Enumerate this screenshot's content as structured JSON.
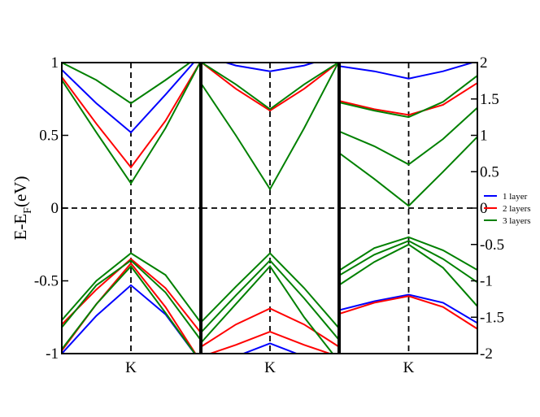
{
  "chart_data": [
    {
      "type": "line",
      "panel": "left",
      "ylabel": "E-E",
      "ylabel_subscript": "F",
      "ylabel_unit": "(eV)",
      "ylim": [
        -1,
        1
      ],
      "yticks": [
        "-1",
        "-0.5",
        "0",
        "0.5",
        "1"
      ],
      "xlim": [
        -1,
        1
      ],
      "xtick_label": "K",
      "series": [
        {
          "color": "#0000ff",
          "lines": [
            {
              "x": [
                -1,
                -0.5,
                0,
                0.5,
                1
              ],
              "y": [
                0.95,
                0.72,
                0.52,
                0.78,
                1.05
              ]
            },
            {
              "x": [
                -1,
                -0.5,
                0,
                0.5,
                1
              ],
              "y": [
                -1.0,
                -0.74,
                -0.53,
                -0.73,
                -1.05
              ]
            }
          ]
        },
        {
          "color": "#ff0000",
          "lines": [
            {
              "x": [
                -1,
                -0.5,
                0,
                0.5,
                1
              ],
              "y": [
                0.9,
                0.58,
                0.28,
                0.6,
                1.0
              ]
            },
            {
              "x": [
                -1,
                -0.5,
                0,
                0.5,
                1
              ],
              "y": [
                -0.8,
                -0.56,
                -0.35,
                -0.55,
                -0.85
              ]
            },
            {
              "x": [
                -1,
                -0.5,
                0,
                0.5,
                1
              ],
              "y": [
                -0.98,
                -0.66,
                -0.38,
                -0.68,
                -1.05
              ]
            }
          ]
        },
        {
          "color": "#008000",
          "lines": [
            {
              "x": [
                -1,
                -0.5,
                0,
                0.5,
                1
              ],
              "y": [
                1.0,
                0.88,
                0.72,
                0.88,
                1.05
              ]
            },
            {
              "x": [
                -1,
                -0.5,
                0,
                0.5,
                1
              ],
              "y": [
                0.88,
                0.52,
                0.17,
                0.55,
                1.0
              ]
            },
            {
              "x": [
                -1,
                -0.5,
                0,
                0.5,
                1
              ],
              "y": [
                -0.77,
                -0.5,
                -0.31,
                -0.46,
                -0.78
              ]
            },
            {
              "x": [
                -1,
                -0.5,
                0,
                0.5,
                1
              ],
              "y": [
                -0.82,
                -0.53,
                -0.36,
                -0.58,
                -0.9
              ]
            },
            {
              "x": [
                -1,
                -0.5,
                0,
                0.5,
                1
              ],
              "y": [
                -0.97,
                -0.66,
                -0.4,
                -0.72,
                -1.05
              ]
            }
          ]
        }
      ]
    },
    {
      "type": "line",
      "panel": "middle",
      "ylim": [
        -1,
        1
      ],
      "xlim": [
        -1,
        1
      ],
      "xtick_label": "K",
      "series": [
        {
          "color": "#0000ff",
          "lines": [
            {
              "x": [
                -1,
                -0.5,
                0,
                0.5,
                1
              ],
              "y": [
                1.05,
                0.98,
                0.94,
                0.98,
                1.05
              ]
            },
            {
              "x": [
                -1,
                -0.5,
                0,
                0.5,
                1
              ],
              "y": [
                -1.1,
                -1.02,
                -0.93,
                -1.02,
                -1.1
              ]
            }
          ]
        },
        {
          "color": "#ff0000",
          "lines": [
            {
              "x": [
                -1,
                -0.5,
                0,
                0.5,
                1
              ],
              "y": [
                1.0,
                0.82,
                0.67,
                0.82,
                1.0
              ]
            },
            {
              "x": [
                -1,
                -0.5,
                0,
                0.5,
                1
              ],
              "y": [
                -0.95,
                -0.8,
                -0.69,
                -0.8,
                -0.95
              ]
            },
            {
              "x": [
                -1,
                -0.5,
                0,
                0.5,
                1
              ],
              "y": [
                -1.02,
                -0.94,
                -0.85,
                -0.94,
                -1.02
              ]
            }
          ]
        },
        {
          "color": "#008000",
          "lines": [
            {
              "x": [
                -1,
                -0.5,
                0,
                0.5,
                1
              ],
              "y": [
                1.0,
                0.85,
                0.68,
                0.85,
                1.0
              ]
            },
            {
              "x": [
                -1,
                -0.5,
                0,
                0.5,
                1
              ],
              "y": [
                0.85,
                0.5,
                0.13,
                0.55,
                1.0
              ]
            },
            {
              "x": [
                -1,
                -0.5,
                0,
                0.5,
                1
              ],
              "y": [
                -0.78,
                -0.54,
                -0.31,
                -0.55,
                -0.82
              ]
            },
            {
              "x": [
                -1,
                -0.5,
                0,
                0.5,
                1
              ],
              "y": [
                -0.85,
                -0.6,
                -0.36,
                -0.62,
                -0.9
              ]
            },
            {
              "x": [
                -1,
                -0.5,
                0,
                0.5,
                1
              ],
              "y": [
                -0.92,
                -0.66,
                -0.4,
                -0.75,
                -1.05
              ]
            }
          ]
        }
      ]
    },
    {
      "type": "line",
      "panel": "right",
      "ylim": [
        -2,
        2
      ],
      "yticks": [
        "-2",
        "-1.5",
        "-1",
        "-0.5",
        "0",
        "0.5",
        "1",
        "1.5",
        "2"
      ],
      "xlim": [
        -1,
        1
      ],
      "xtick_label": "K",
      "legend": {
        "position": "right",
        "entries": [
          {
            "label": "1 layer",
            "color": "#0000ff"
          },
          {
            "label": "2 layers",
            "color": "#ff0000"
          },
          {
            "label": "3 layers",
            "color": "#008000"
          }
        ]
      },
      "series": [
        {
          "color": "#0000ff",
          "lines": [
            {
              "x": [
                -1,
                -0.5,
                0,
                0.5,
                1
              ],
              "y": [
                1.95,
                1.88,
                1.78,
                1.88,
                2.02
              ]
            },
            {
              "x": [
                -1,
                -0.5,
                0,
                0.5,
                1
              ],
              "y": [
                -1.4,
                -1.28,
                -1.19,
                -1.3,
                -1.58
              ]
            }
          ]
        },
        {
          "color": "#ff0000",
          "lines": [
            {
              "x": [
                -1,
                -0.5,
                0,
                0.5,
                1
              ],
              "y": [
                1.47,
                1.36,
                1.28,
                1.42,
                1.72
              ]
            },
            {
              "x": [
                -1,
                -0.5,
                0,
                0.5,
                1
              ],
              "y": [
                -1.45,
                -1.3,
                -1.21,
                -1.36,
                -1.66
              ]
            }
          ]
        },
        {
          "color": "#008000",
          "lines": [
            {
              "x": [
                -1,
                -0.5,
                0,
                0.5,
                1
              ],
              "y": [
                1.45,
                1.34,
                1.25,
                1.46,
                1.82
              ]
            },
            {
              "x": [
                -1,
                -0.5,
                0,
                0.5,
                1
              ],
              "y": [
                1.05,
                0.85,
                0.6,
                0.95,
                1.38
              ]
            },
            {
              "x": [
                -1,
                -0.5,
                0,
                0.5,
                1
              ],
              "y": [
                0.75,
                0.4,
                0.03,
                0.5,
                0.98
              ]
            },
            {
              "x": [
                -1,
                -0.5,
                0,
                0.5,
                1
              ],
              "y": [
                -0.85,
                -0.55,
                -0.4,
                -0.58,
                -0.85
              ]
            },
            {
              "x": [
                -1,
                -0.5,
                0,
                0.5,
                1
              ],
              "y": [
                -0.92,
                -0.64,
                -0.45,
                -0.7,
                -1.02
              ]
            },
            {
              "x": [
                -1,
                -0.5,
                0,
                0.5,
                1
              ],
              "y": [
                -1.05,
                -0.74,
                -0.5,
                -0.82,
                -1.35
              ]
            }
          ]
        }
      ]
    }
  ]
}
